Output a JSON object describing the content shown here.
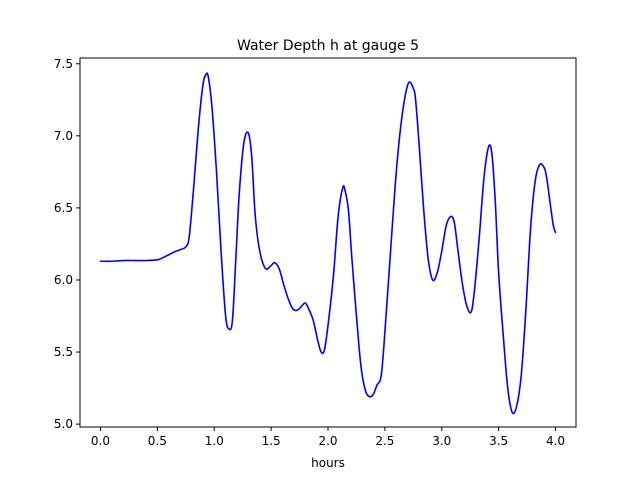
{
  "chart_data": {
    "type": "line",
    "title": "Water Depth h at gauge 5",
    "xlabel": "hours",
    "ylabel": "",
    "xlim": [
      -0.18,
      4.18
    ],
    "ylim": [
      4.98,
      7.54
    ],
    "grid": false,
    "x_ticks": [
      {
        "value": 0.0,
        "label": "0.0"
      },
      {
        "value": 0.5,
        "label": "0.5"
      },
      {
        "value": 1.0,
        "label": "1.0"
      },
      {
        "value": 1.5,
        "label": "1.5"
      },
      {
        "value": 2.0,
        "label": "2.0"
      },
      {
        "value": 2.5,
        "label": "2.5"
      },
      {
        "value": 3.0,
        "label": "3.0"
      },
      {
        "value": 3.5,
        "label": "3.5"
      },
      {
        "value": 4.0,
        "label": "4.0"
      }
    ],
    "y_ticks": [
      {
        "value": 5.0,
        "label": "5.0"
      },
      {
        "value": 5.5,
        "label": "5.5"
      },
      {
        "value": 6.0,
        "label": "6.0"
      },
      {
        "value": 6.5,
        "label": "6.5"
      },
      {
        "value": 7.0,
        "label": "7.0"
      },
      {
        "value": 7.5,
        "label": "7.5"
      }
    ],
    "series": [
      {
        "color": "#0000ff",
        "x": [
          0.0,
          0.1,
          0.2,
          0.3,
          0.4,
          0.5,
          0.55,
          0.6,
          0.65,
          0.7,
          0.75,
          0.78,
          0.82,
          0.86,
          0.9,
          0.93,
          0.95,
          0.98,
          1.02,
          1.06,
          1.1,
          1.13,
          1.16,
          1.19,
          1.22,
          1.26,
          1.3,
          1.33,
          1.36,
          1.4,
          1.45,
          1.5,
          1.53,
          1.57,
          1.61,
          1.65,
          1.69,
          1.73,
          1.77,
          1.8,
          1.83,
          1.87,
          1.91,
          1.94,
          1.97,
          2.01,
          2.05,
          2.09,
          2.13,
          2.15,
          2.18,
          2.21,
          2.25,
          2.29,
          2.33,
          2.37,
          2.4,
          2.43,
          2.47,
          2.51,
          2.55,
          2.59,
          2.63,
          2.67,
          2.71,
          2.75,
          2.77,
          2.8,
          2.84,
          2.88,
          2.92,
          2.96,
          3.0,
          3.04,
          3.08,
          3.11,
          3.14,
          3.18,
          3.22,
          3.26,
          3.29,
          3.33,
          3.37,
          3.41,
          3.44,
          3.47,
          3.5,
          3.54,
          3.58,
          3.62,
          3.66,
          3.7,
          3.74,
          3.78,
          3.82,
          3.86,
          3.9,
          3.92,
          3.95,
          3.98,
          4.0
        ],
        "y": [
          6.13,
          6.13,
          6.135,
          6.135,
          6.135,
          6.14,
          6.155,
          6.175,
          6.195,
          6.21,
          6.23,
          6.3,
          6.65,
          7.05,
          7.35,
          7.43,
          7.4,
          7.2,
          6.75,
          6.2,
          5.75,
          5.66,
          5.72,
          6.15,
          6.6,
          6.95,
          7.02,
          6.85,
          6.45,
          6.2,
          6.08,
          6.1,
          6.12,
          6.08,
          5.97,
          5.87,
          5.8,
          5.79,
          5.82,
          5.84,
          5.8,
          5.72,
          5.58,
          5.5,
          5.52,
          5.75,
          6.05,
          6.45,
          6.64,
          6.62,
          6.48,
          6.15,
          5.75,
          5.4,
          5.23,
          5.19,
          5.21,
          5.27,
          5.35,
          5.75,
          6.2,
          6.65,
          7.0,
          7.24,
          7.37,
          7.33,
          7.25,
          6.95,
          6.5,
          6.15,
          6.0,
          6.05,
          6.2,
          6.38,
          6.44,
          6.4,
          6.22,
          5.98,
          5.82,
          5.78,
          5.95,
          6.3,
          6.7,
          6.92,
          6.88,
          6.55,
          6.05,
          5.62,
          5.25,
          5.08,
          5.13,
          5.35,
          5.8,
          6.35,
          6.68,
          6.8,
          6.78,
          6.72,
          6.55,
          6.38,
          6.33
        ]
      }
    ]
  }
}
